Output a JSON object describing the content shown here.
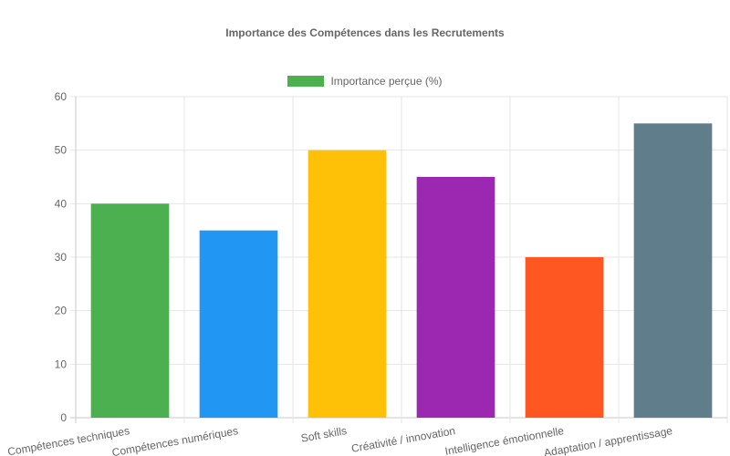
{
  "chart_data": {
    "type": "bar",
    "title": "Importance des Compétences dans les Recrutements",
    "xlabel": "",
    "ylabel": "",
    "ylim": [
      0,
      60
    ],
    "yticks": [
      0,
      10,
      20,
      30,
      40,
      50,
      60
    ],
    "grid": true,
    "legend_position": "top",
    "categories": [
      "Compétences techniques",
      "Compétences numériques",
      "Soft skills",
      "Créativité / innovation",
      "Intelligence émotionnelle",
      "Adaptation / apprentissage"
    ],
    "series": [
      {
        "name": "Importance perçue (%)",
        "values": [
          40,
          35,
          50,
          45,
          30,
          55
        ],
        "colors": [
          "#4CAF50",
          "#2196F3",
          "#FFC107",
          "#9C27B0",
          "#FF5722",
          "#607D8B"
        ]
      }
    ]
  },
  "legend": {
    "label": "Importance perçue (%)",
    "color": "#4CAF50"
  }
}
